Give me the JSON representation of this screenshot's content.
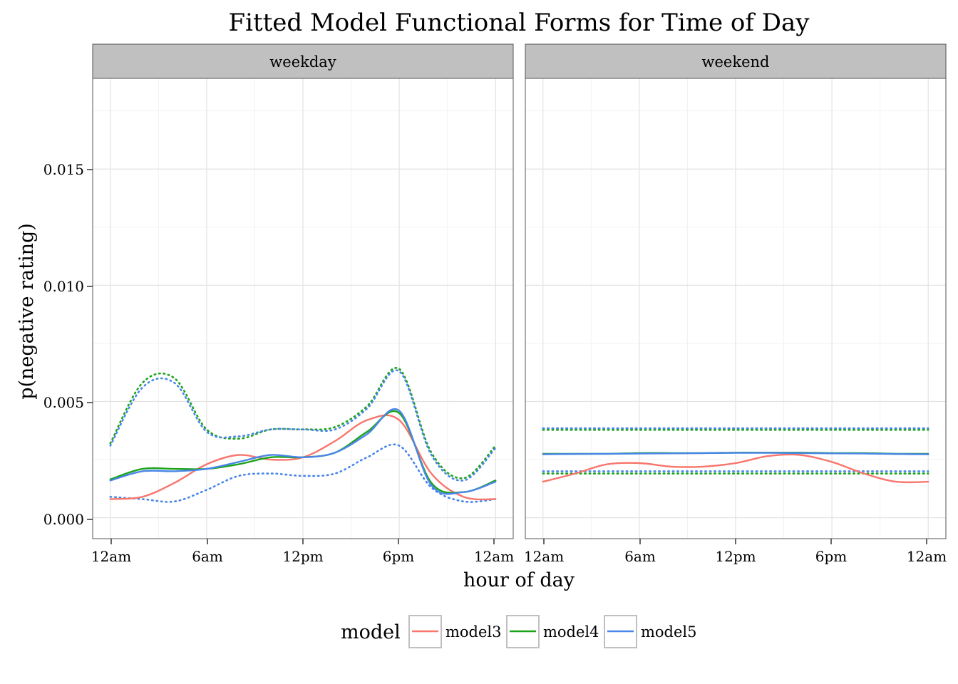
{
  "chart_data": {
    "type": "line",
    "title": "Fitted Model Functional Forms for Time of Day",
    "xlabel": "hour of day",
    "ylabel": "p(negative rating)",
    "x_ticks": [
      "12am",
      "6am",
      "12pm",
      "6pm",
      "12am"
    ],
    "x_tick_hours": [
      0,
      6,
      12,
      18,
      24
    ],
    "xlim": [
      -1.1,
      25.1
    ],
    "y_ticks": [
      "0.000",
      "0.005",
      "0.010",
      "0.015"
    ],
    "y_tick_values": [
      0,
      0.005,
      0.01,
      0.015
    ],
    "ylim": [
      -0.0009,
      0.0189
    ],
    "grid": true,
    "legend": {
      "title": "model",
      "position": "bottom",
      "entries": [
        "model3",
        "model4",
        "model5"
      ]
    },
    "colors": {
      "model3": "#F8766D",
      "model4": "#1BA31B",
      "model5": "#4A86E8"
    },
    "x": [
      0,
      2,
      4,
      6,
      8,
      10,
      12,
      14,
      16,
      18,
      20,
      22,
      24
    ],
    "panels": [
      {
        "label": "weekday",
        "series": [
          {
            "name": "model3",
            "style": "solid",
            "values": [
              0.0008,
              0.0009,
              0.0015,
              0.0023,
              0.0027,
              0.0025,
              0.0026,
              0.0033,
              0.0042,
              0.0042,
              0.0019,
              0.0009,
              0.0008
            ]
          },
          {
            "name": "model4",
            "style": "solid",
            "values": [
              0.00165,
              0.0021,
              0.0021,
              0.0021,
              0.0023,
              0.0026,
              0.0026,
              0.0028,
              0.0037,
              0.0045,
              0.0015,
              0.0011,
              0.0016
            ]
          },
          {
            "name": "model5",
            "style": "solid",
            "values": [
              0.0016,
              0.002,
              0.002,
              0.0021,
              0.0024,
              0.0027,
              0.0026,
              0.0028,
              0.0036,
              0.0046,
              0.0014,
              0.0011,
              0.00155
            ]
          },
          {
            "name": "model4",
            "style": "dotted",
            "values": [
              0.0032,
              0.0058,
              0.006,
              0.0038,
              0.0034,
              0.0038,
              0.0038,
              0.0039,
              0.0048,
              0.0064,
              0.0028,
              0.0017,
              0.0031
            ]
          },
          {
            "name": "model5",
            "style": "dotted",
            "values": [
              0.0031,
              0.0056,
              0.0058,
              0.0037,
              0.0035,
              0.0038,
              0.0038,
              0.0038,
              0.0047,
              0.0063,
              0.0027,
              0.0016,
              0.003
            ]
          },
          {
            "name": "model5",
            "style": "dotted",
            "values": [
              0.0009,
              0.0008,
              0.0007,
              0.0012,
              0.0018,
              0.0019,
              0.0018,
              0.0019,
              0.0026,
              0.0031,
              0.0013,
              0.0007,
              0.0008
            ]
          }
        ]
      },
      {
        "label": "weekend",
        "series": [
          {
            "name": "model3",
            "style": "solid",
            "values": [
              0.00155,
              0.0019,
              0.0023,
              0.00235,
              0.0022,
              0.0022,
              0.00235,
              0.00265,
              0.0027,
              0.0024,
              0.0019,
              0.00155,
              0.00155
            ]
          },
          {
            "name": "model4",
            "style": "solid",
            "values": [
              0.00275,
              0.00275,
              0.00275,
              0.00278,
              0.00278,
              0.00278,
              0.0028,
              0.0028,
              0.0028,
              0.00278,
              0.00278,
              0.00275,
              0.00275
            ]
          },
          {
            "name": "model5",
            "style": "solid",
            "values": [
              0.00273,
              0.00274,
              0.00275,
              0.00276,
              0.00277,
              0.00278,
              0.00279,
              0.00279,
              0.00278,
              0.00277,
              0.00276,
              0.00274,
              0.00273
            ]
          },
          {
            "name": "model4",
            "style": "dotted",
            "values": [
              0.00378,
              0.00378,
              0.00378,
              0.00378,
              0.00378,
              0.00378,
              0.00378,
              0.00378,
              0.00378,
              0.00378,
              0.00378,
              0.00378,
              0.00378
            ]
          },
          {
            "name": "model5",
            "style": "dotted",
            "values": [
              0.00385,
              0.00385,
              0.00385,
              0.00385,
              0.00385,
              0.00385,
              0.00385,
              0.00385,
              0.00385,
              0.00385,
              0.00385,
              0.00385,
              0.00385
            ]
          },
          {
            "name": "model4",
            "style": "dotted",
            "values": [
              0.0019,
              0.0019,
              0.0019,
              0.0019,
              0.0019,
              0.0019,
              0.0019,
              0.0019,
              0.0019,
              0.0019,
              0.0019,
              0.0019,
              0.0019
            ]
          },
          {
            "name": "model5",
            "style": "dotted",
            "values": [
              0.002,
              0.002,
              0.002,
              0.002,
              0.002,
              0.002,
              0.002,
              0.002,
              0.002,
              0.002,
              0.002,
              0.002,
              0.002
            ]
          }
        ]
      }
    ]
  }
}
